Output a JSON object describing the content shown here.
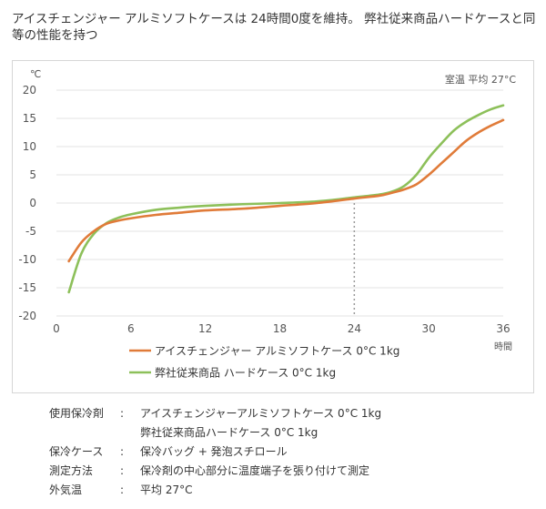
{
  "headline": "アイスチェンジャー アルミソフトケースは 24時間0度を維持。 弊社従来商品ハードケースと同等の性能を持つ",
  "chart_data": {
    "type": "line",
    "title": "",
    "annotation": "室温 平均 27°C",
    "xlabel": "時間",
    "ylabel": "℃",
    "xlim": [
      0,
      36
    ],
    "ylim": [
      -20,
      20
    ],
    "x_ticks": [
      0,
      6,
      12,
      18,
      24,
      30,
      36
    ],
    "y_ticks": [
      20,
      15,
      10,
      5,
      0,
      -5,
      -10,
      -15,
      -20
    ],
    "grid": "horizontal",
    "reference_line": {
      "x": 24,
      "style": "dotted",
      "color": "#999999"
    },
    "legend_position": "bottom",
    "series": [
      {
        "name": "アイスチェンジャー アルミソフトケース 0°C 1kg",
        "color": "#e07b39",
        "x": [
          1,
          2,
          3,
          4,
          5,
          6,
          8,
          10,
          12,
          15,
          18,
          21,
          24,
          26,
          27,
          28,
          29,
          30,
          31,
          32,
          33,
          34,
          35,
          36
        ],
        "values": [
          -10.3,
          -7.0,
          -5.0,
          -3.7,
          -3.1,
          -2.7,
          -2.1,
          -1.7,
          -1.3,
          -1.0,
          -0.5,
          0.0,
          0.8,
          1.3,
          1.8,
          2.4,
          3.3,
          5.0,
          7.0,
          9.0,
          11.0,
          12.5,
          13.7,
          14.7
        ]
      },
      {
        "name": "弊社従来商品 ハードケース 0°C 1kg",
        "color": "#8dc05a",
        "x": [
          1,
          2,
          3,
          4,
          5,
          6,
          8,
          10,
          12,
          15,
          18,
          21,
          24,
          26,
          27,
          28,
          29,
          30,
          31,
          32,
          33,
          34,
          35,
          36
        ],
        "values": [
          -15.8,
          -9.0,
          -5.5,
          -3.6,
          -2.6,
          -2.0,
          -1.2,
          -0.8,
          -0.5,
          -0.2,
          0.0,
          0.3,
          1.0,
          1.5,
          2.0,
          3.0,
          5.0,
          8.0,
          10.5,
          12.8,
          14.4,
          15.6,
          16.6,
          17.3
        ]
      }
    ]
  },
  "notes": [
    {
      "label": "使用保冷剤",
      "colon": ":",
      "values": [
        "アイスチェンジャーアルミソフトケース 0°C 1kg",
        "弊社従来商品ハードケース 0°C 1kg"
      ]
    },
    {
      "label": "保冷ケース",
      "colon": ":",
      "values": [
        "保冷バッグ + 発泡スチロール"
      ]
    },
    {
      "label": "測定方法",
      "colon": ":",
      "values": [
        "保冷剤の中心部分に温度端子を張り付けて測定"
      ]
    },
    {
      "label": "外気温",
      "colon": ":",
      "values": [
        "平均 27°C"
      ]
    }
  ]
}
